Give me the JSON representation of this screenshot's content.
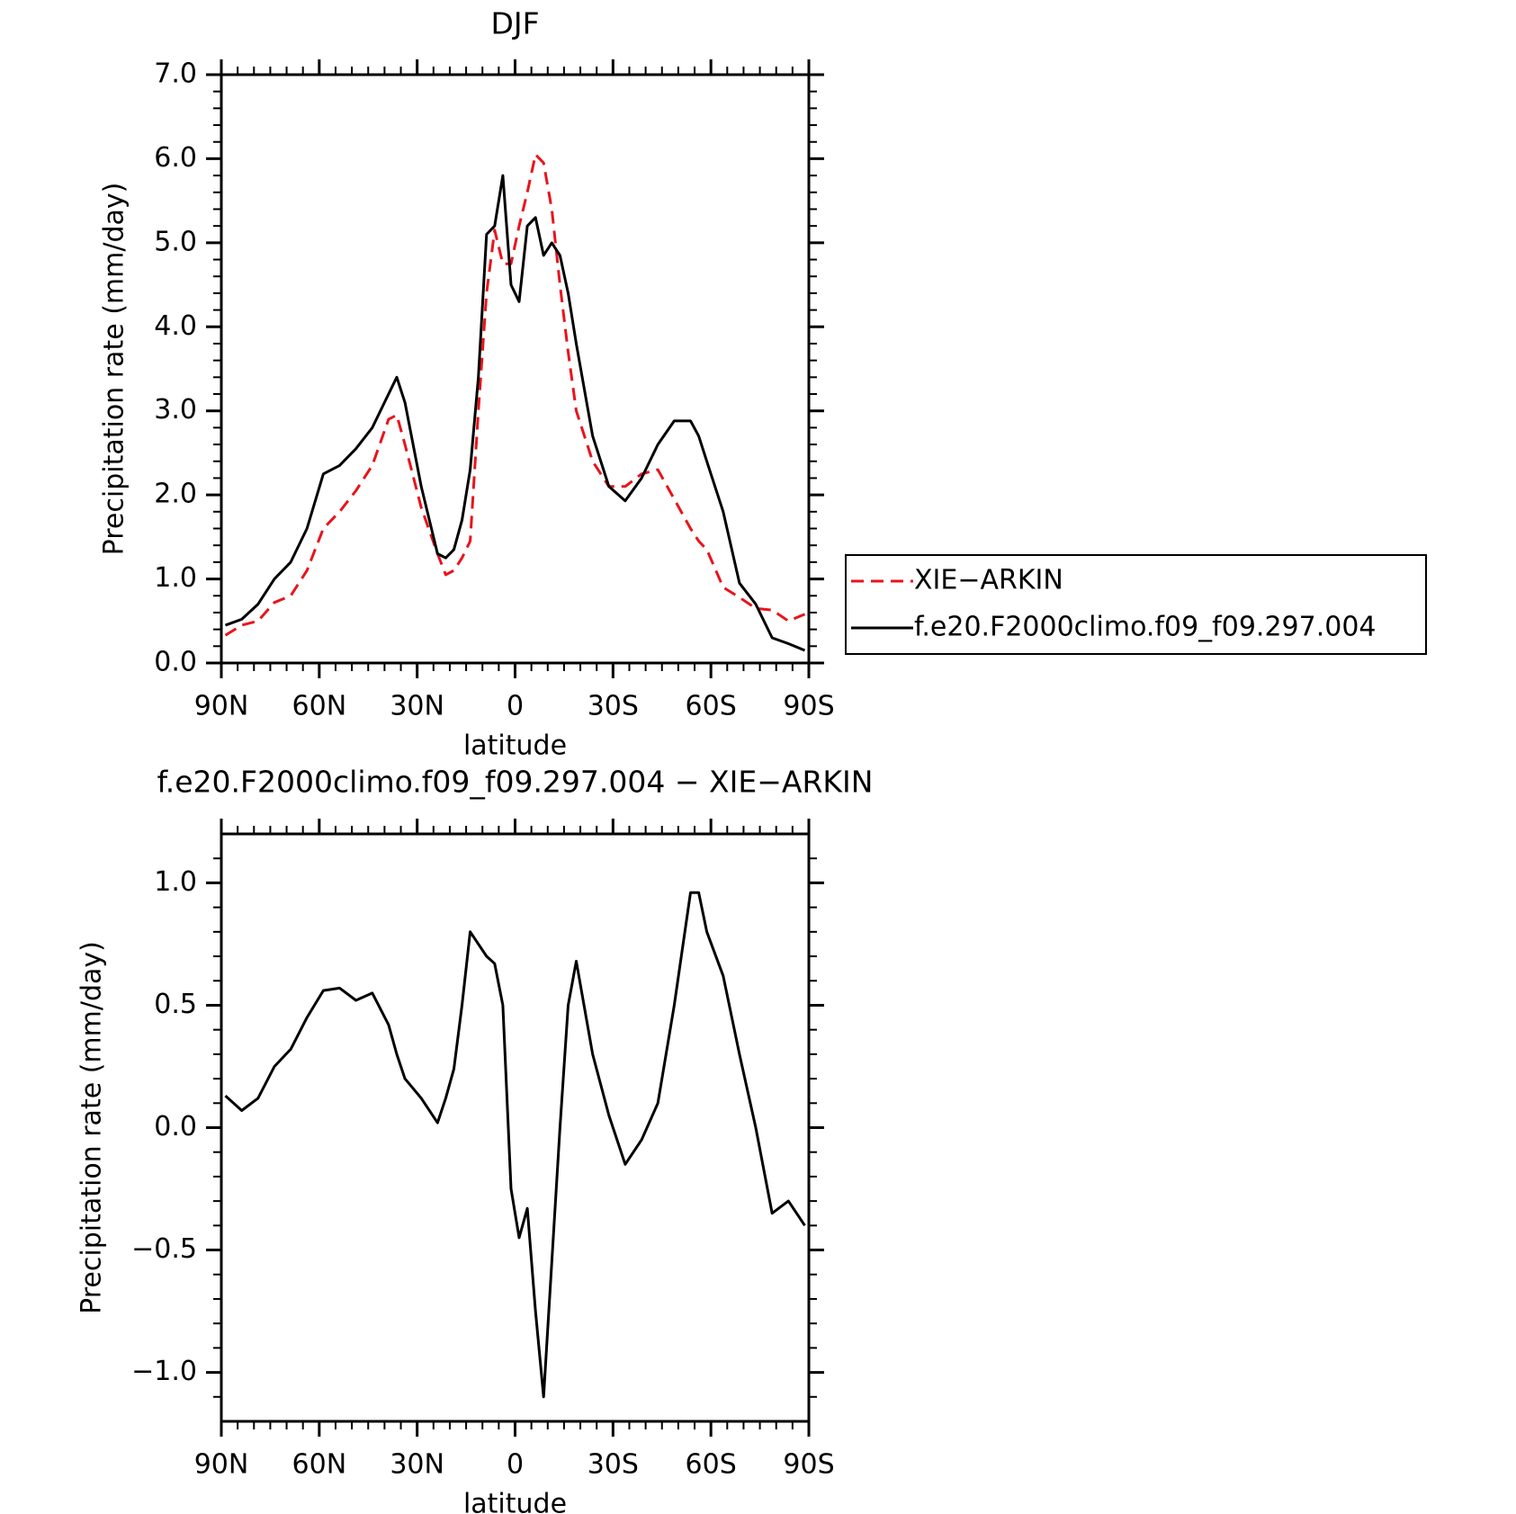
{
  "chart_data": [
    {
      "type": "line",
      "title": "DJF",
      "xlabel": "latitude",
      "ylabel": "Precipitation rate (mm/day)",
      "x": [
        88.75,
        83.75,
        78.75,
        73.75,
        68.75,
        63.75,
        58.75,
        53.75,
        48.75,
        43.75,
        38.75,
        36.25,
        33.75,
        28.75,
        23.75,
        21.25,
        18.75,
        16.25,
        13.75,
        11.25,
        8.75,
        6.25,
        3.75,
        1.25,
        -1.25,
        -3.75,
        -6.25,
        -8.75,
        -11.25,
        -13.75,
        -16.25,
        -18.75,
        -23.75,
        -28.75,
        -33.75,
        -38.75,
        -43.75,
        -48.75,
        -53.75,
        -56.25,
        -58.75,
        -63.75,
        -68.75,
        -73.75,
        -78.75,
        -83.75,
        -88.75
      ],
      "series": [
        {
          "name": "XIE−ARKIN",
          "color": "#e8141c",
          "dash": "dashed",
          "values": [
            0.33,
            0.45,
            0.5,
            0.72,
            0.8,
            1.1,
            1.6,
            1.8,
            2.05,
            2.35,
            2.9,
            2.95,
            2.6,
            1.85,
            1.3,
            1.05,
            1.1,
            1.25,
            1.45,
            3.0,
            4.4,
            5.15,
            4.75,
            4.75,
            5.2,
            5.6,
            6.05,
            5.95,
            5.4,
            4.5,
            3.7,
            3.0,
            2.4,
            2.1,
            2.1,
            2.25,
            2.3,
            1.95,
            1.6,
            1.45,
            1.35,
            0.9,
            0.78,
            0.65,
            0.63,
            0.5,
            0.58
          ]
        },
        {
          "name": "f.e20.F2000climo.f09_f09.297.004",
          "color": "#000000",
          "dash": "solid",
          "values": [
            0.45,
            0.52,
            0.7,
            1.0,
            1.2,
            1.6,
            2.25,
            2.35,
            2.55,
            2.8,
            3.2,
            3.4,
            3.1,
            2.1,
            1.3,
            1.25,
            1.35,
            1.7,
            2.3,
            3.4,
            5.1,
            5.2,
            5.8,
            4.5,
            4.3,
            5.2,
            5.3,
            4.85,
            5.0,
            4.85,
            4.4,
            3.8,
            2.7,
            2.1,
            1.93,
            2.2,
            2.6,
            2.88,
            2.88,
            2.7,
            2.4,
            1.8,
            0.95,
            0.7,
            0.3,
            0.23,
            0.15
          ]
        }
      ],
      "xlim": [
        90,
        -90
      ],
      "xticks": [
        {
          "value": 90,
          "label": "90N"
        },
        {
          "value": 60,
          "label": "60N"
        },
        {
          "value": 30,
          "label": "30N"
        },
        0,
        {
          "value": -30,
          "label": "30S"
        },
        {
          "value": -60,
          "label": "60S"
        },
        {
          "value": -90,
          "label": "90S"
        }
      ],
      "ylim": [
        0,
        7
      ],
      "yticks": [
        {
          "value": 0,
          "label": "0.0"
        },
        {
          "value": 1,
          "label": "1.0"
        },
        {
          "value": 2,
          "label": "2.0"
        },
        {
          "value": 3,
          "label": "3.0"
        },
        {
          "value": 4,
          "label": "4.0"
        },
        {
          "value": 5,
          "label": "5.0"
        },
        {
          "value": 6,
          "label": "6.0"
        },
        {
          "value": 7,
          "label": "7.0"
        }
      ],
      "legend": "right",
      "grid": false
    },
    {
      "type": "line",
      "title": "f.e20.F2000climo.f09_f09.297.004 − XIE−ARKIN",
      "xlabel": "latitude",
      "ylabel": "Precipitation rate (mm/day)",
      "x": [
        88.75,
        83.75,
        78.75,
        73.75,
        68.75,
        63.75,
        58.75,
        53.75,
        48.75,
        43.75,
        38.75,
        36.25,
        33.75,
        28.75,
        23.75,
        21.25,
        18.75,
        16.25,
        13.75,
        11.25,
        8.75,
        6.25,
        3.75,
        1.25,
        -1.25,
        -3.75,
        -6.25,
        -8.75,
        -11.25,
        -13.75,
        -16.25,
        -18.75,
        -23.75,
        -28.75,
        -33.75,
        -38.75,
        -43.75,
        -48.75,
        -53.75,
        -56.25,
        -58.75,
        -63.75,
        -68.75,
        -73.75,
        -78.75,
        -83.75,
        -88.75
      ],
      "series": [
        {
          "color": "#000000",
          "dash": "solid",
          "values": [
            0.13,
            0.07,
            0.12,
            0.25,
            0.32,
            0.45,
            0.56,
            0.57,
            0.52,
            0.55,
            0.42,
            0.3,
            0.2,
            0.12,
            0.02,
            0.12,
            0.24,
            0.5,
            0.8,
            0.75,
            0.7,
            0.67,
            0.5,
            -0.25,
            -0.45,
            -0.33,
            -0.75,
            -1.1,
            -0.55,
            0.0,
            0.5,
            0.68,
            0.3,
            0.05,
            -0.15,
            -0.05,
            0.1,
            0.5,
            0.96,
            0.96,
            0.8,
            0.62,
            0.3,
            0.0,
            -0.35,
            -0.3,
            -0.4
          ]
        }
      ],
      "xlim": [
        90,
        -90
      ],
      "xticks": [
        {
          "value": 90,
          "label": "90N"
        },
        {
          "value": 60,
          "label": "60N"
        },
        {
          "value": 30,
          "label": "30N"
        },
        0,
        {
          "value": -30,
          "label": "30S"
        },
        {
          "value": -60,
          "label": "60S"
        },
        {
          "value": -90,
          "label": "90S"
        }
      ],
      "ylim": [
        -1.2,
        1.2
      ],
      "yticks": [
        {
          "value": -1,
          "label": "−1.0"
        },
        {
          "value": -0.5,
          "label": "−0.5"
        },
        {
          "value": 0,
          "label": "0.0"
        },
        {
          "value": 0.5,
          "label": "0.5"
        },
        {
          "value": 1,
          "label": "1.0"
        }
      ],
      "grid": false
    }
  ]
}
